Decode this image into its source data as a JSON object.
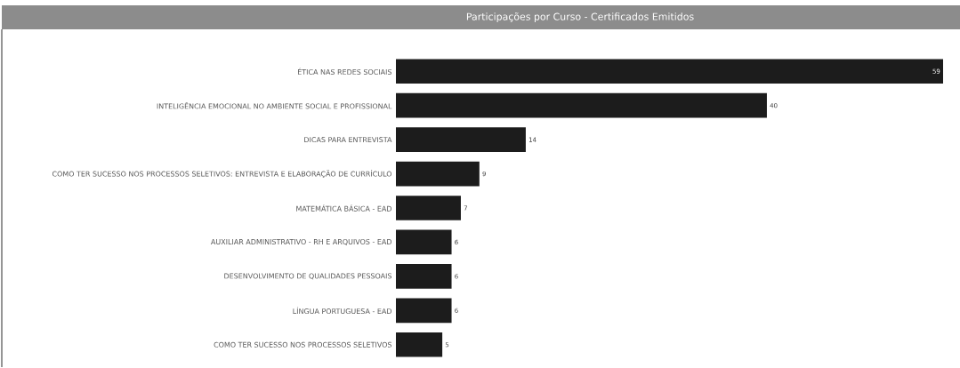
{
  "chart_data": {
    "type": "bar",
    "orientation": "horizontal",
    "title": "Participações por Curso - Certificados Emitidos",
    "categories": [
      "ÉTICA NAS REDES SOCIAIS",
      "INTELIGÊNCIA EMOCIONAL NO AMBIENTE SOCIAL E PROFISSIONAL",
      "DICAS PARA ENTREVISTA",
      "COMO TER SUCESSO NOS PROCESSOS SELETIVOS: ENTREVISTA E ELABORAÇÃO DE CURRÍCULO",
      "MATEMÁTICA BÁSICA - EAD",
      "AUXILIAR ADMINISTRATIVO - RH E ARQUIVOS - EAD",
      "DESENVOLVIMENTO DE QUALIDADES PESSOAIS",
      "LÍNGUA PORTUGUESA - EAD",
      "COMO TER SUCESSO NOS PROCESSOS SELETIVOS"
    ],
    "values": [
      59,
      40,
      14,
      9,
      7,
      6,
      6,
      6,
      5
    ],
    "color": "#1c1c1c",
    "data_labels": true
  }
}
